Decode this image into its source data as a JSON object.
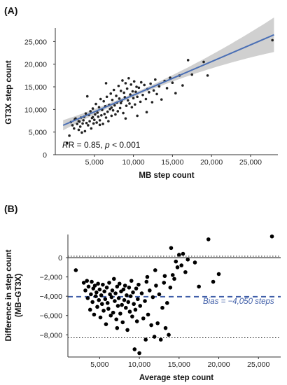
{
  "chart_data": [
    {
      "panel": "(A)",
      "type": "scatter",
      "xlabel": "MB step count",
      "ylabel": "GT3X step count",
      "xlim": [
        0,
        28500
      ],
      "ylim": [
        0,
        28000
      ],
      "xticks": [
        5000,
        10000,
        15000,
        20000,
        25000
      ],
      "xtick_labels": [
        "5,000",
        "10,000",
        "15,000",
        "20,000",
        "25,000"
      ],
      "yticks": [
        0,
        5000,
        10000,
        15000,
        20000,
        25000
      ],
      "ytick_labels": [
        "0",
        "5,000",
        "10,000",
        "15,000",
        "20,000",
        "25,000"
      ],
      "annotation": {
        "r_text": "R = 0.85, ",
        "p_italic": "p",
        "p_text": " < 0.001"
      },
      "regression": {
        "x1": 1000,
        "y1": 6500,
        "x2": 28000,
        "y2": 26500,
        "color": "#4a6fb5",
        "band_color": "#c8c8c8"
      },
      "points": [
        [
          1500,
          2600
        ],
        [
          1800,
          4200
        ],
        [
          2000,
          7200
        ],
        [
          2200,
          6500
        ],
        [
          2400,
          5800
        ],
        [
          2500,
          7800
        ],
        [
          2600,
          8000
        ],
        [
          2800,
          6800
        ],
        [
          3000,
          5500
        ],
        [
          3100,
          7300
        ],
        [
          3200,
          6200
        ],
        [
          3300,
          8200
        ],
        [
          3400,
          4900
        ],
        [
          3500,
          6900
        ],
        [
          3600,
          7600
        ],
        [
          3700,
          8400
        ],
        [
          3800,
          5200
        ],
        [
          3900,
          9100
        ],
        [
          4000,
          7000
        ],
        [
          4100,
          12900
        ],
        [
          4200,
          6500
        ],
        [
          4300,
          8800
        ],
        [
          4400,
          7400
        ],
        [
          4500,
          9600
        ],
        [
          4600,
          5800
        ],
        [
          4700,
          8100
        ],
        [
          4800,
          10200
        ],
        [
          4900,
          6900
        ],
        [
          5000,
          7700
        ],
        [
          5100,
          8900
        ],
        [
          5200,
          11200
        ],
        [
          5300,
          7100
        ],
        [
          5400,
          9300
        ],
        [
          5500,
          8400
        ],
        [
          5600,
          10500
        ],
        [
          5700,
          7600
        ],
        [
          5800,
          12300
        ],
        [
          5900,
          8700
        ],
        [
          6000,
          9900
        ],
        [
          6100,
          6800
        ],
        [
          6200,
          11800
        ],
        [
          6300,
          9000
        ],
        [
          6400,
          10700
        ],
        [
          6500,
          8200
        ],
        [
          6600,
          12800
        ],
        [
          6700,
          9500
        ],
        [
          6800,
          7400
        ],
        [
          6900,
          11000
        ],
        [
          7000,
          10100
        ],
        [
          7100,
          13500
        ],
        [
          7200,
          8600
        ],
        [
          7300,
          12100
        ],
        [
          7400,
          9800
        ],
        [
          7500,
          14300
        ],
        [
          7600,
          10900
        ],
        [
          7700,
          8900
        ],
        [
          7800,
          13000
        ],
        [
          7900,
          11500
        ],
        [
          8000,
          9600
        ],
        [
          8100,
          15200
        ],
        [
          8200,
          12400
        ],
        [
          8300,
          10300
        ],
        [
          8400,
          14100
        ],
        [
          8500,
          11900
        ],
        [
          8600,
          16400
        ],
        [
          8700,
          9200
        ],
        [
          8800,
          13700
        ],
        [
          8900,
          12700
        ],
        [
          9000,
          15800
        ],
        [
          9100,
          10800
        ],
        [
          9200,
          14600
        ],
        [
          9300,
          12000
        ],
        [
          9400,
          16900
        ],
        [
          9500,
          11300
        ],
        [
          9600,
          13300
        ],
        [
          9700,
          15500
        ],
        [
          9800,
          10500
        ],
        [
          9900,
          14000
        ],
        [
          10000,
          12500
        ],
        [
          10100,
          16200
        ],
        [
          10200,
          11100
        ],
        [
          10300,
          13900
        ],
        [
          10400,
          15000
        ],
        [
          10500,
          12800
        ],
        [
          10700,
          14800
        ],
        [
          10900,
          11700
        ],
        [
          11000,
          16000
        ],
        [
          11200,
          13200
        ],
        [
          11400,
          15400
        ],
        [
          11600,
          12300
        ],
        [
          11800,
          14500
        ],
        [
          12000,
          13800
        ],
        [
          12200,
          15700
        ],
        [
          12400,
          11600
        ],
        [
          12600,
          14200
        ],
        [
          12800,
          16600
        ],
        [
          13000,
          13400
        ],
        [
          13300,
          15100
        ],
        [
          13600,
          12200
        ],
        [
          14000,
          16300
        ],
        [
          14300,
          14700
        ],
        [
          14700,
          17000
        ],
        [
          15000,
          15900
        ],
        [
          15400,
          13600
        ],
        [
          15900,
          17500
        ],
        [
          16300,
          15300
        ],
        [
          17000,
          20900
        ],
        [
          17500,
          17700
        ],
        [
          19000,
          20500
        ],
        [
          19500,
          17500
        ],
        [
          27800,
          25300
        ],
        [
          10500,
          8600
        ],
        [
          6500,
          15800
        ],
        [
          3000,
          7400
        ],
        [
          4800,
          8300
        ],
        [
          7200,
          10400
        ],
        [
          9000,
          8000
        ],
        [
          11700,
          9400
        ],
        [
          8400,
          11400
        ],
        [
          5700,
          6600
        ]
      ]
    },
    {
      "panel": "(B)",
      "type": "scatter",
      "xlabel": "Average step count",
      "ylabel_line1": "Difference in step count",
      "ylabel_line2": "(MB−GT3X)",
      "xlim": [
        1000,
        27800
      ],
      "ylim": [
        -10300,
        2400
      ],
      "xticks": [
        5000,
        10000,
        15000,
        20000,
        25000
      ],
      "xtick_labels": [
        "5,000",
        "10,000",
        "15,000",
        "20,000",
        "25,000"
      ],
      "yticks": [
        0,
        -2000,
        -4000,
        -6000,
        -8000
      ],
      "ytick_labels": [
        "0",
        "−2,000",
        "−4,000",
        "−6,000",
        "−8,000"
      ],
      "bias_value": -4050,
      "upper_loa": 150,
      "lower_loa": -8300,
      "bias_label": "Bias = −4,050 steps",
      "bias_color": "#3f5ea8",
      "points": [
        [
          2000,
          -1300
        ],
        [
          3000,
          -2600
        ],
        [
          3200,
          -3400
        ],
        [
          3400,
          -2400
        ],
        [
          3500,
          -4200
        ],
        [
          3600,
          -3000
        ],
        [
          3800,
          -5400
        ],
        [
          3900,
          -3800
        ],
        [
          4000,
          -2500
        ],
        [
          4100,
          -4600
        ],
        [
          4200,
          -3200
        ],
        [
          4300,
          -5900
        ],
        [
          4400,
          -2900
        ],
        [
          4500,
          -4000
        ],
        [
          4600,
          -3600
        ],
        [
          4700,
          -5100
        ],
        [
          4800,
          -2700
        ],
        [
          4900,
          -4400
        ],
        [
          5000,
          -3300
        ],
        [
          5100,
          -6200
        ],
        [
          5200,
          -3900
        ],
        [
          5300,
          -4800
        ],
        [
          5400,
          -2800
        ],
        [
          5500,
          -5500
        ],
        [
          5600,
          -3500
        ],
        [
          5700,
          -4300
        ],
        [
          5800,
          -6900
        ],
        [
          5900,
          -3100
        ],
        [
          6000,
          -4700
        ],
        [
          6100,
          -5300
        ],
        [
          6200,
          -2600
        ],
        [
          6300,
          -3800
        ],
        [
          6400,
          -6000
        ],
        [
          6500,
          -4100
        ],
        [
          6600,
          -3400
        ],
        [
          6700,
          -5700
        ],
        [
          6800,
          -2200
        ],
        [
          6900,
          -4500
        ],
        [
          7000,
          -3700
        ],
        [
          7100,
          -6400
        ],
        [
          7200,
          -3000
        ],
        [
          7300,
          -5000
        ],
        [
          7400,
          -4200
        ],
        [
          7500,
          -2700
        ],
        [
          7600,
          -5800
        ],
        [
          7700,
          -3500
        ],
        [
          7800,
          -4900
        ],
        [
          7900,
          -6700
        ],
        [
          8000,
          -3300
        ],
        [
          8100,
          -4400
        ],
        [
          8200,
          -2900
        ],
        [
          8300,
          -5200
        ],
        [
          8400,
          -3900
        ],
        [
          8500,
          -7500
        ],
        [
          8600,
          -4600
        ],
        [
          8700,
          -3100
        ],
        [
          8800,
          -5600
        ],
        [
          8900,
          -4000
        ],
        [
          9000,
          -2400
        ],
        [
          9100,
          -6100
        ],
        [
          9200,
          -3600
        ],
        [
          9300,
          -4800
        ],
        [
          9400,
          -9500
        ],
        [
          9500,
          -5400
        ],
        [
          9600,
          -3200
        ],
        [
          9700,
          -6600
        ],
        [
          9800,
          -4300
        ],
        [
          9900,
          -2800
        ],
        [
          10000,
          -9900
        ],
        [
          10100,
          -5000
        ],
        [
          10300,
          -3700
        ],
        [
          10500,
          -6300
        ],
        [
          10700,
          -4500
        ],
        [
          10900,
          -2500
        ],
        [
          11100,
          -5900
        ],
        [
          11300,
          -3400
        ],
        [
          11500,
          -7000
        ],
        [
          11700,
          -4100
        ],
        [
          11900,
          -8200
        ],
        [
          12100,
          -2900
        ],
        [
          12300,
          -6800
        ],
        [
          12500,
          -3800
        ],
        [
          12700,
          -8500
        ],
        [
          12900,
          -5200
        ],
        [
          13100,
          -2600
        ],
        [
          13300,
          -7300
        ],
        [
          13500,
          -4700
        ],
        [
          13700,
          -8000
        ],
        [
          13900,
          -3100
        ],
        [
          14000,
          1000
        ],
        [
          14200,
          -1800
        ],
        [
          14400,
          -2200
        ],
        [
          14600,
          -400
        ],
        [
          14800,
          -1000
        ],
        [
          15000,
          300
        ],
        [
          15300,
          -800
        ],
        [
          15500,
          400
        ],
        [
          15800,
          -1500
        ],
        [
          16100,
          -200
        ],
        [
          17000,
          -500
        ],
        [
          17500,
          -3000
        ],
        [
          18700,
          1900
        ],
        [
          19300,
          -2500
        ],
        [
          20000,
          -1700
        ],
        [
          26700,
          2200
        ],
        [
          11000,
          -2000
        ],
        [
          12000,
          -1300
        ],
        [
          13200,
          -1900
        ],
        [
          7200,
          -7300
        ],
        [
          10800,
          -8500
        ]
      ]
    }
  ]
}
